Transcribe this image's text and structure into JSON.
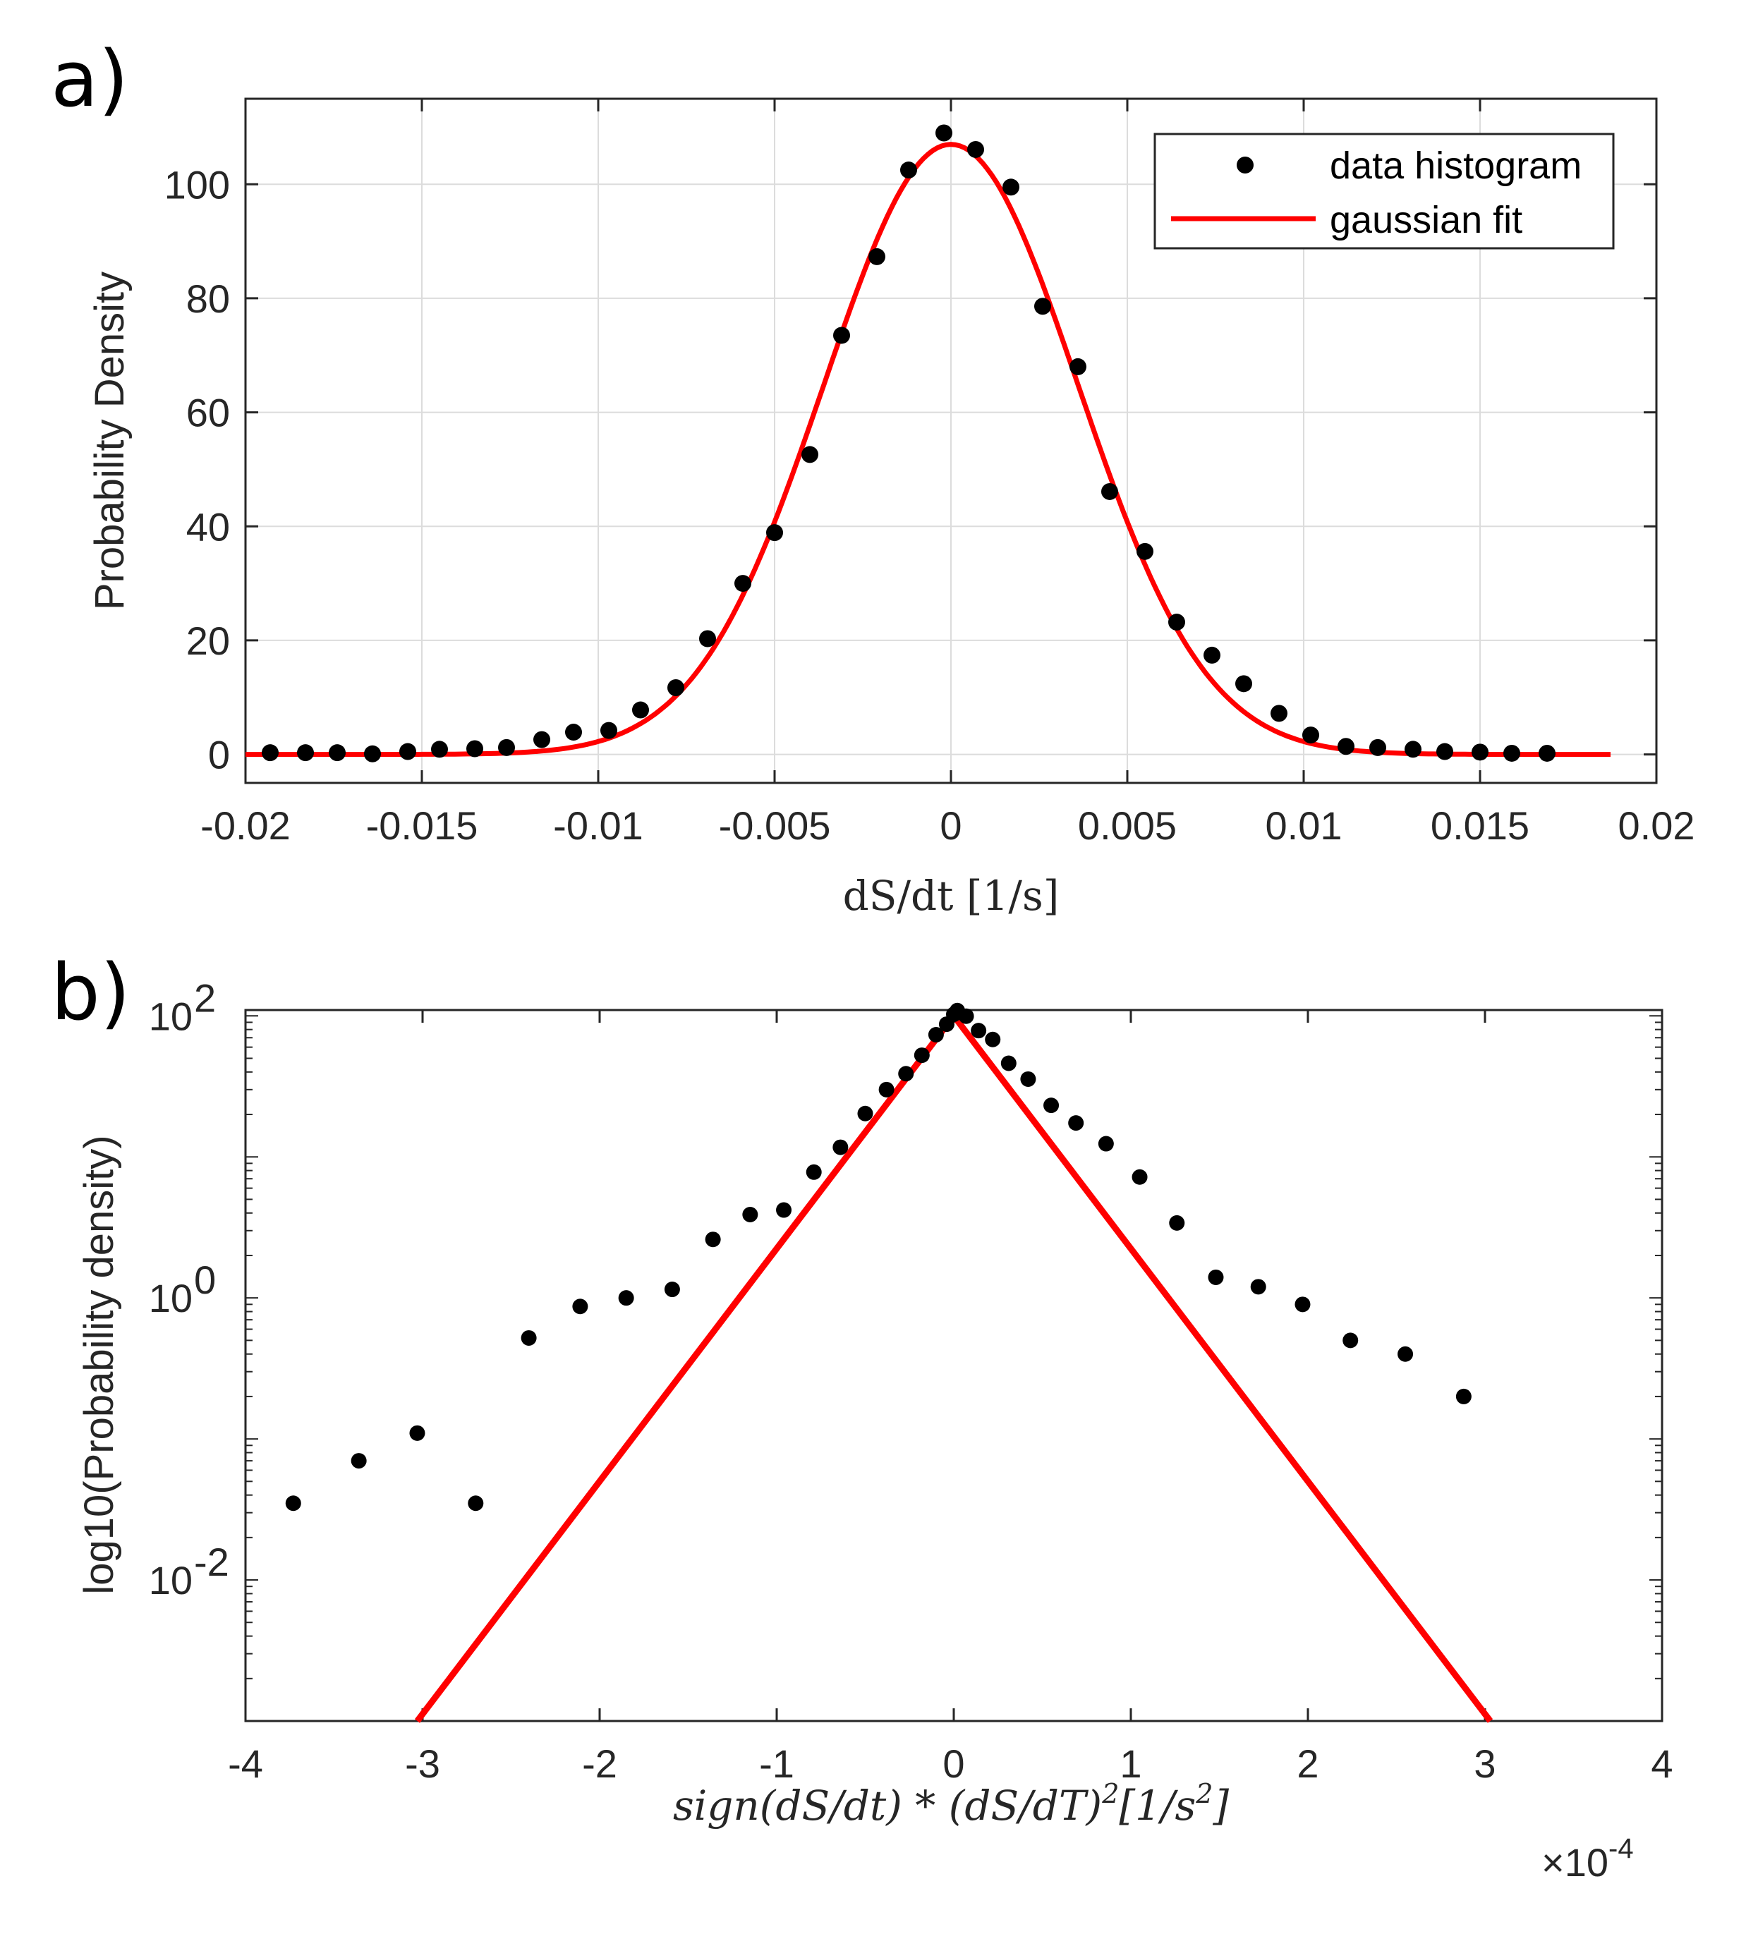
{
  "chart_data": [
    {
      "panel_label": "a)",
      "type": "scatter",
      "xlabel": "dS/dt [1/s]",
      "ylabel": "Probability Density",
      "xlim": [
        -0.02,
        0.02
      ],
      "ylim": [
        -5,
        115
      ],
      "x_ticks": [
        -0.02,
        -0.015,
        -0.01,
        -0.005,
        0,
        0.005,
        0.01,
        0.015,
        0.02
      ],
      "x_tick_labels": [
        "-0.02",
        "-0.015",
        "-0.01",
        "-0.005",
        "0",
        "0.005",
        "0.01",
        "0.015",
        "0.02"
      ],
      "y_ticks": [
        0,
        20,
        40,
        60,
        80,
        100
      ],
      "y_tick_labels": [
        "0",
        "20",
        "40",
        "60",
        "80",
        "100"
      ],
      "grid": true,
      "legend_position": "top-right",
      "series": [
        {
          "name": "data histogram",
          "kind": "markers",
          "color": "#000000",
          "x": [
            -0.0193,
            -0.0183,
            -0.0174,
            -0.0164,
            -0.0154,
            -0.0145,
            -0.0135,
            -0.0126,
            -0.0116,
            -0.0107,
            -0.0097,
            -0.0088,
            -0.0078,
            -0.0069,
            -0.0059,
            -0.005,
            -0.004,
            -0.0031,
            -0.0021,
            -0.0012,
            -0.0002,
            0.0007,
            0.0017,
            0.0026,
            0.0036,
            0.0045,
            0.0055,
            0.0064,
            0.0074,
            0.0083,
            0.0093,
            0.0102,
            0.0112,
            0.0121,
            0.0131,
            0.014,
            0.015,
            0.0159,
            0.0169
          ],
          "y": [
            0.3,
            0.3,
            0.3,
            0.1,
            0.5,
            0.9,
            1.0,
            1.2,
            2.6,
            3.9,
            4.2,
            7.8,
            11.7,
            20.3,
            30.0,
            38.9,
            52.6,
            73.5,
            87.3,
            102.5,
            109.0,
            106.1,
            99.5,
            78.6,
            68.0,
            46.1,
            35.6,
            23.2,
            17.4,
            12.4,
            7.2,
            3.4,
            1.4,
            1.2,
            0.9,
            0.5,
            0.4,
            0.2,
            0.2
          ]
        },
        {
          "name": "gaussian fit",
          "kind": "gaussian",
          "color": "#ff0000",
          "amplitude": 107,
          "mean": 0,
          "sigma": 0.0036,
          "x_range": [
            -0.02,
            0.0187
          ]
        }
      ]
    },
    {
      "panel_label": "b)",
      "type": "scatter",
      "xlabel": "sign(dS/dt) * (dS/dT)",
      "xlabel_exponent": "2",
      "xlabel_units": "[1/s",
      "xlabel_units_exponent": "2",
      "xlabel_units_close": "]",
      "ylabel": "log10(Probability density)",
      "y_scale": "log",
      "xlim": [
        -4,
        4
      ],
      "ylim": [
        0.001,
        110
      ],
      "x_ticks": [
        -4,
        -3,
        -2,
        -1,
        0,
        1,
        2,
        3,
        4
      ],
      "x_tick_labels": [
        "-4",
        "-3",
        "-2",
        "-1",
        "0",
        "1",
        "2",
        "3",
        "4"
      ],
      "x_multiplier": "×10",
      "x_multiplier_exponent": "-4",
      "y_ticks": [
        0.01,
        1,
        100
      ],
      "y_tick_labels": [
        "10",
        "10",
        "10"
      ],
      "y_tick_exponents": [
        "-2",
        "0",
        "2"
      ],
      "grid": false,
      "series": [
        {
          "name": "",
          "kind": "markers",
          "color": "#000000",
          "x": [
            -3.73,
            -3.36,
            -3.03,
            -2.7,
            -2.4,
            -2.11,
            -1.85,
            -1.59,
            -1.36,
            -1.15,
            -0.96,
            -0.79,
            -0.64,
            -0.5,
            -0.38,
            -0.27,
            -0.18,
            -0.1,
            -0.04,
            0.0,
            0.02,
            0.07,
            0.14,
            0.22,
            0.31,
            0.42,
            0.55,
            0.69,
            0.86,
            1.05,
            1.26,
            1.48,
            1.72,
            1.97,
            2.24,
            2.55,
            2.88
          ],
          "y": [
            0.035,
            0.07,
            0.11,
            0.035,
            0.52,
            0.87,
            1.0,
            1.15,
            2.6,
            3.9,
            4.2,
            7.8,
            11.7,
            20.3,
            30.0,
            38.9,
            52.6,
            73.5,
            87.3,
            102.5,
            109.0,
            99.5,
            78.6,
            68.0,
            46.1,
            35.6,
            23.2,
            17.4,
            12.4,
            7.2,
            3.4,
            1.4,
            1.2,
            0.9,
            0.5,
            0.4,
            0.2
          ]
        },
        {
          "name": "",
          "kind": "line",
          "color": "#ff0000",
          "x": [
            -3.03,
            0,
            3.03
          ],
          "y": [
            0.001,
            100,
            0.001
          ]
        }
      ]
    }
  ]
}
